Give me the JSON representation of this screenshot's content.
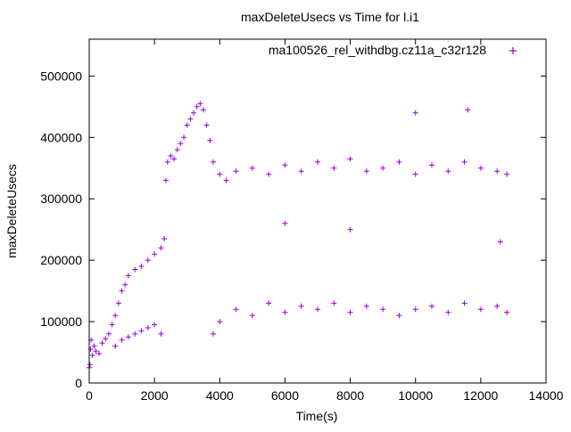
{
  "chart_data": {
    "type": "scatter",
    "title": "maxDeleteUsecs vs Time for l.i1",
    "xlabel": "Time(s)",
    "ylabel": "maxDeleteUsecs",
    "xlim": [
      0,
      14000
    ],
    "ylim": [
      0,
      560000
    ],
    "x_ticks": [
      0,
      2000,
      4000,
      6000,
      8000,
      10000,
      12000,
      14000
    ],
    "y_ticks": [
      0,
      100000,
      200000,
      300000,
      400000,
      500000
    ],
    "x_tick_labels": [
      "0",
      "2000",
      "4000",
      "6000",
      "8000",
      "10000",
      "12000",
      "14000"
    ],
    "y_tick_labels": [
      "0",
      "100000",
      "200000",
      "300000",
      "400000",
      "500000"
    ],
    "grid": false,
    "legend_position": "top-right",
    "marker": "+",
    "series": [
      {
        "name": "ma100526_rel_withdbg.cz11a_c32r128",
        "color": "#9400D3",
        "points": [
          [
            0,
            25000
          ],
          [
            20,
            30000
          ],
          [
            40,
            55000
          ],
          [
            60,
            70000
          ],
          [
            100,
            45000
          ],
          [
            150,
            60000
          ],
          [
            200,
            52000
          ],
          [
            300,
            48000
          ],
          [
            400,
            65000
          ],
          [
            500,
            72000
          ],
          [
            600,
            80000
          ],
          [
            700,
            95000
          ],
          [
            800,
            110000
          ],
          [
            900,
            130000
          ],
          [
            1000,
            150000
          ],
          [
            1100,
            160000
          ],
          [
            1200,
            175000
          ],
          [
            1400,
            185000
          ],
          [
            1600,
            190000
          ],
          [
            1800,
            200000
          ],
          [
            2000,
            210000
          ],
          [
            2200,
            220000
          ],
          [
            2300,
            235000
          ],
          [
            800,
            60000
          ],
          [
            1000,
            70000
          ],
          [
            1200,
            75000
          ],
          [
            1400,
            80000
          ],
          [
            1600,
            85000
          ],
          [
            1800,
            90000
          ],
          [
            2000,
            95000
          ],
          [
            2200,
            80000
          ],
          [
            2350,
            330000
          ],
          [
            2400,
            360000
          ],
          [
            2500,
            370000
          ],
          [
            2600,
            365000
          ],
          [
            2700,
            380000
          ],
          [
            2800,
            390000
          ],
          [
            2900,
            400000
          ],
          [
            3000,
            420000
          ],
          [
            3100,
            430000
          ],
          [
            3200,
            440000
          ],
          [
            3300,
            450000
          ],
          [
            3400,
            455000
          ],
          [
            3500,
            445000
          ],
          [
            3600,
            420000
          ],
          [
            3700,
            395000
          ],
          [
            3800,
            360000
          ],
          [
            4000,
            340000
          ],
          [
            4200,
            330000
          ],
          [
            4500,
            345000
          ],
          [
            5000,
            350000
          ],
          [
            5500,
            340000
          ],
          [
            6000,
            355000
          ],
          [
            6500,
            345000
          ],
          [
            7000,
            360000
          ],
          [
            7500,
            350000
          ],
          [
            8000,
            365000
          ],
          [
            8500,
            345000
          ],
          [
            9000,
            350000
          ],
          [
            9500,
            360000
          ],
          [
            10000,
            340000
          ],
          [
            10500,
            355000
          ],
          [
            11000,
            345000
          ],
          [
            11500,
            360000
          ],
          [
            12000,
            350000
          ],
          [
            12500,
            345000
          ],
          [
            12800,
            340000
          ],
          [
            3800,
            80000
          ],
          [
            4000,
            100000
          ],
          [
            4500,
            120000
          ],
          [
            5000,
            110000
          ],
          [
            5500,
            130000
          ],
          [
            6000,
            115000
          ],
          [
            6500,
            125000
          ],
          [
            7000,
            120000
          ],
          [
            7500,
            130000
          ],
          [
            8000,
            115000
          ],
          [
            8500,
            125000
          ],
          [
            9000,
            120000
          ],
          [
            9500,
            110000
          ],
          [
            10000,
            120000
          ],
          [
            10500,
            125000
          ],
          [
            11000,
            115000
          ],
          [
            11500,
            130000
          ],
          [
            12000,
            120000
          ],
          [
            12500,
            125000
          ],
          [
            12800,
            115000
          ],
          [
            6000,
            260000
          ],
          [
            8000,
            250000
          ],
          [
            10000,
            440000
          ],
          [
            11600,
            445000
          ],
          [
            12600,
            230000
          ]
        ]
      }
    ]
  }
}
